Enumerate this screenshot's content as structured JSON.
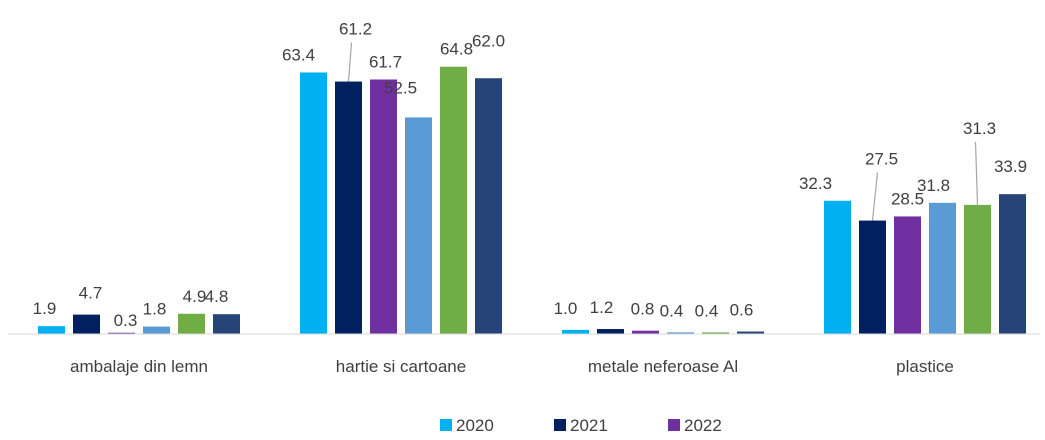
{
  "chart_data": {
    "type": "bar",
    "categories": [
      "ambalaje din lemn",
      "hartie si cartoane",
      "metale neferoase Al",
      "plastice"
    ],
    "series": [
      {
        "name": "2020",
        "color": "#00b0f0",
        "values": [
          1.9,
          63.4,
          1.0,
          32.3
        ]
      },
      {
        "name": "2021",
        "color": "#002060",
        "values": [
          4.7,
          61.2,
          1.2,
          27.5
        ]
      },
      {
        "name": "2022",
        "color": "#7030a0",
        "values": [
          0.3,
          61.7,
          0.8,
          28.5
        ]
      },
      {
        "name": "",
        "color": "#5b9bd5",
        "values": [
          1.8,
          52.5,
          0.4,
          31.8
        ]
      },
      {
        "name": "",
        "color": "#70ad47",
        "values": [
          4.9,
          64.8,
          0.4,
          31.3
        ]
      },
      {
        "name": "",
        "color": "#264478",
        "values": [
          4.8,
          62.0,
          0.6,
          33.9
        ]
      }
    ],
    "data_labels": [
      [
        "1.9",
        "63.4",
        "1.0",
        "32.3"
      ],
      [
        "4.7",
        "61.2",
        "1.2",
        "27.5"
      ],
      [
        "0.3",
        "61.7",
        "0.8",
        "28.5"
      ],
      [
        "1.8",
        "52.5",
        "0.4",
        "31.8"
      ],
      [
        "4.9",
        "64.8",
        "0.4",
        "31.3"
      ],
      [
        "4.8",
        "62.0",
        "0.6",
        "33.9"
      ]
    ],
    "title": "",
    "xlabel": "",
    "ylabel": "",
    "ylim": [
      0,
      70
    ],
    "grid": false,
    "legend": "bottom-center"
  }
}
